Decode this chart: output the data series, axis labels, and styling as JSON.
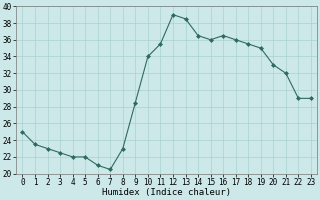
{
  "x": [
    0,
    1,
    2,
    3,
    4,
    5,
    6,
    7,
    8,
    9,
    10,
    11,
    12,
    13,
    14,
    15,
    16,
    17,
    18,
    19,
    20,
    21,
    22,
    23
  ],
  "y": [
    25,
    23.5,
    23,
    22.5,
    22,
    22,
    21,
    20.5,
    23,
    28.5,
    34,
    35.5,
    39,
    38.5,
    36.5,
    36,
    36.5,
    36,
    35.5,
    35,
    33,
    32,
    29,
    29
  ],
  "line_color": "#2e6b5e",
  "marker": "D",
  "marker_size": 2,
  "bg_color": "#cce8e8",
  "grid_color": "#aad0d0",
  "xlabel": "Humidex (Indice chaleur)",
  "ylim": [
    20,
    40
  ],
  "xlim": [
    -0.5,
    23.5
  ],
  "yticks": [
    20,
    22,
    24,
    26,
    28,
    30,
    32,
    34,
    36,
    38,
    40
  ],
  "xticks": [
    0,
    1,
    2,
    3,
    4,
    5,
    6,
    7,
    8,
    9,
    10,
    11,
    12,
    13,
    14,
    15,
    16,
    17,
    18,
    19,
    20,
    21,
    22,
    23
  ],
  "tick_fontsize": 5.5,
  "label_fontsize": 6.5
}
